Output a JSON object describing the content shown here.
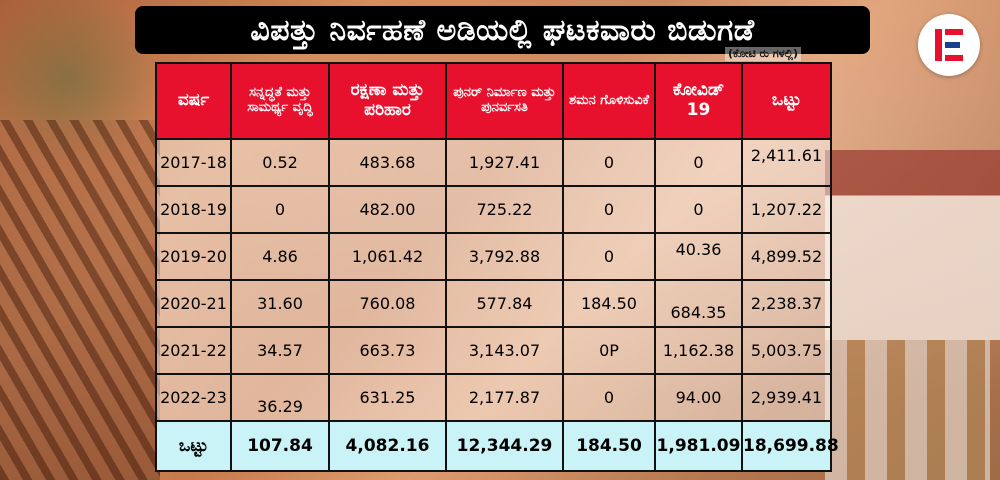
{
  "title": "ವಿಪತ್ತು ನಿರ್ವಹಣೆ ಅಡಿಯಲ್ಲಿ ಘಟಕವಾರು ಬಿಡುಗಡೆ",
  "subtitle": "(ಕೋಟಿ ರು ಗಳಲ್ಲಿ)",
  "logo": {
    "icon": "brand-e-logo-icon",
    "color": "#e8112d"
  },
  "colors": {
    "header_bg": "#e8112d",
    "total_bg": "#c9f3f6",
    "title_bg": "#000000"
  },
  "table": {
    "headers": [
      "ವರ್ಷ",
      "ಸನ್ನದ್ಧತೆ ಮತ್ತು ಸಾಮರ್ಥ್ಯ ವೃದ್ಧಿ",
      "ರಕ್ಷಣಾ ಮತ್ತು ಪರಿಹಾರ",
      "ಪುನರ್ ನಿರ್ಮಾಣ ಮತ್ತು ಪುನರ್ವಸತಿ",
      "ಶಮನ ಗೊಳಿಸುವಿಕೆ",
      "ಕೋವಿಡ್ 19",
      "ಒಟ್ಟು"
    ],
    "rows": [
      [
        "2017-18",
        "0.52",
        "483.68",
        "1,927.41",
        "0",
        "0",
        "2,411.61"
      ],
      [
        "2018-19",
        "0",
        "482.00",
        "725.22",
        "0",
        "0",
        "1,207.22"
      ],
      [
        "2019-20",
        "4.86",
        "1,061.42",
        "3,792.88",
        "0",
        "40.36",
        "4,899.52"
      ],
      [
        "2020-21",
        "31.60",
        "760.08",
        "577.84",
        "184.50",
        "684.35",
        "2,238.37"
      ],
      [
        "2021-22",
        "34.57",
        "663.73",
        "3,143.07",
        "0P",
        "1,162.38",
        "5,003.75"
      ],
      [
        "2022-23",
        "36.29",
        "631.25",
        "2,177.87",
        "0",
        "94.00",
        "2,939.41"
      ]
    ],
    "total": [
      "ಒಟ್ಟು",
      "107.84",
      "4,082.16",
      "12,344.29",
      "184.50",
      "1,981.09",
      "18,699.88"
    ]
  }
}
